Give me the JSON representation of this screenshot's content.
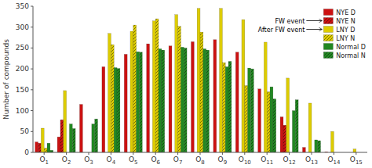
{
  "chart_data": {
    "type": "bar",
    "categories": [
      "O1",
      "O2",
      "O3",
      "O4",
      "O5",
      "O6",
      "O7",
      "O8",
      "O9",
      "O10",
      "O11",
      "O12",
      "O13",
      "O14",
      "O15"
    ],
    "series": [
      {
        "name": "NYE D",
        "color": "#cc1111",
        "values": [
          25,
          37,
          115,
          205,
          235,
          260,
          255,
          265,
          270,
          240,
          152,
          85,
          12,
          1,
          0
        ]
      },
      {
        "name": "NYE N",
        "color": "#cc1111",
        "values": [
          22,
          78,
          0,
          0,
          0,
          0,
          0,
          0,
          0,
          0,
          0,
          65,
          0,
          0,
          0
        ]
      },
      {
        "name": "LNY D",
        "color": "#ddcc00",
        "values": [
          58,
          148,
          0,
          285,
          290,
          315,
          330,
          345,
          345,
          318,
          264,
          178,
          118,
          50,
          8
        ]
      },
      {
        "name": "LNY N",
        "color": "#ddcc00",
        "values": [
          10,
          0,
          0,
          258,
          305,
          320,
          302,
          288,
          215,
          160,
          145,
          0,
          0,
          0,
          0
        ]
      },
      {
        "name": "Normal D",
        "color": "#228822",
        "values": [
          22,
          68,
          68,
          203,
          241,
          248,
          252,
          248,
          205,
          202,
          157,
          100,
          30,
          0,
          0
        ]
      },
      {
        "name": "Normal N",
        "color": "#228822",
        "values": [
          5,
          57,
          80,
          201,
          240,
          245,
          250,
          245,
          218,
          200,
          128,
          126,
          28,
          0,
          0
        ]
      }
    ],
    "ylabel": "Number of compounds",
    "ylim": [
      0,
      350
    ],
    "yticks": [
      0,
      50,
      100,
      150,
      200,
      250,
      300,
      350
    ],
    "annotations": [
      "FW event",
      "After FW event"
    ],
    "legend": "upper right",
    "grid": false
  }
}
